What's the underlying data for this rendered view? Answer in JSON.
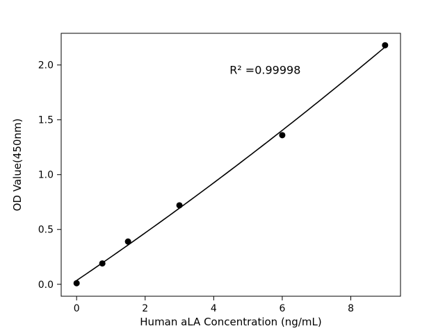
{
  "figure": {
    "background": "#ffffff"
  },
  "chart_data": {
    "type": "scatter",
    "title": "",
    "xlabel": "Human aLA Concentration (ng/mL)",
    "ylabel": "OD Value(450nm)",
    "x": [
      0,
      0.75,
      1.5,
      3,
      6,
      9
    ],
    "y": [
      0.01,
      0.19,
      0.39,
      0.72,
      1.36,
      2.18
    ],
    "fit_type": "quadratic",
    "annotation": {
      "text": "R² =0.99998",
      "x": 5.5,
      "y": 1.95
    },
    "xlim": [
      -0.45,
      9.45
    ],
    "ylim": [
      -0.109,
      2.289
    ],
    "xticks": [
      0,
      2,
      4,
      6,
      8
    ],
    "xtick_labels": [
      "0",
      "2",
      "4",
      "6",
      "8"
    ],
    "yticks": [
      0.0,
      0.5,
      1.0,
      1.5,
      2.0
    ],
    "ytick_labels": [
      "0.0",
      "0.5",
      "1.0",
      "1.5",
      "2.0"
    ],
    "grid": false,
    "legend_position": "none",
    "marker_color": "#000000",
    "line_color": "#000000",
    "frame_color": "#000000"
  }
}
